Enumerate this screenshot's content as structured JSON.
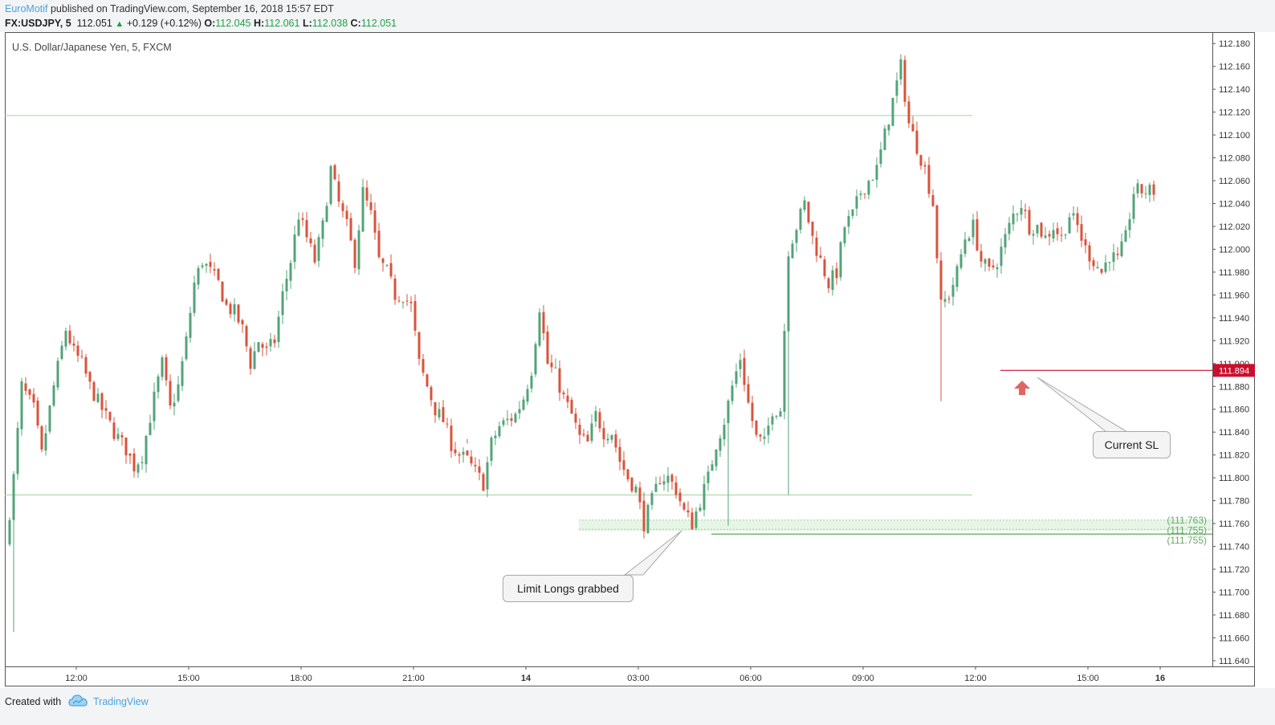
{
  "header": {
    "author": "EuroMotif",
    "published_text": " published on TradingView.com, September 16, 2018 15:57 EDT",
    "symbol": "FX:USDJPY, 5",
    "last": "112.051",
    "change": "+0.129 (+0.12%)",
    "o_label": "O:",
    "o": "112.045",
    "h_label": "H:",
    "h": "112.061",
    "l_label": "L:",
    "l": "112.038",
    "c_label": "C:",
    "c": "112.051"
  },
  "chart_title": "U.S. Dollar/Japanese Yen, 5, FXCM",
  "footer": {
    "created_with": "Created with",
    "brand": "TradingView"
  },
  "colors": {
    "up": "#53a378",
    "down": "#d9533b",
    "level_line": "#9fd49f",
    "sl_line": "#c8102e",
    "sl_badge": "#c8102e",
    "zone_fill": "#e6f5e6",
    "zone_text": "#6aa86a",
    "arrow": "#e06666",
    "accent": "#4ba3dd"
  },
  "chart_data": {
    "type": "candlestick",
    "title": "U.S. Dollar/Japanese Yen, 5, FXCM",
    "ylim": [
      111.635,
      112.19
    ],
    "y_ticks": [
      "112.180",
      "112.160",
      "112.140",
      "112.120",
      "112.100",
      "112.080",
      "112.060",
      "112.040",
      "112.020",
      "112.000",
      "111.980",
      "111.960",
      "111.940",
      "111.920",
      "111.900",
      "111.880",
      "111.860",
      "111.840",
      "111.820",
      "111.800",
      "111.780",
      "111.760",
      "111.740",
      "111.720",
      "111.700",
      "111.680",
      "111.660",
      "111.640"
    ],
    "x_ticks": [
      {
        "label": "12:00",
        "bold": false
      },
      {
        "label": "15:00",
        "bold": false
      },
      {
        "label": "18:00",
        "bold": false
      },
      {
        "label": "21:00",
        "bold": false
      },
      {
        "label": "14",
        "bold": true
      },
      {
        "label": "03:00",
        "bold": false
      },
      {
        "label": "06:00",
        "bold": false
      },
      {
        "label": "09:00",
        "bold": false
      },
      {
        "label": "12:00",
        "bold": false
      },
      {
        "label": "15:00",
        "bold": false
      },
      {
        "label": "16",
        "bold": true
      }
    ],
    "levels": [
      {
        "name": "upper-range-line",
        "value": 112.117
      },
      {
        "name": "lower-range-line",
        "value": 111.785
      }
    ],
    "zone": {
      "top": 111.763,
      "bottom": 111.755,
      "labels": [
        "(111.763)",
        "(111.755)",
        "(111.755)"
      ]
    },
    "stop_loss": {
      "value": 111.894,
      "label": "111.894"
    },
    "annotations": [
      {
        "name": "limit-longs-callout",
        "text": "Limit Longs grabbed"
      },
      {
        "name": "current-sl-callout",
        "text": "Current SL"
      }
    ],
    "path": [
      [
        0,
        111.74
      ],
      [
        2,
        111.8
      ],
      [
        4,
        111.88
      ],
      [
        7,
        111.86
      ],
      [
        9,
        111.82
      ],
      [
        12,
        111.88
      ],
      [
        15,
        111.93
      ],
      [
        17,
        111.91
      ],
      [
        19,
        111.9
      ],
      [
        21,
        111.88
      ],
      [
        24,
        111.86
      ],
      [
        27,
        111.84
      ],
      [
        30,
        111.825
      ],
      [
        32,
        111.81
      ],
      [
        34,
        111.82
      ],
      [
        37,
        111.87
      ],
      [
        39,
        111.9
      ],
      [
        41,
        111.86
      ],
      [
        43,
        111.88
      ],
      [
        45,
        111.92
      ],
      [
        47,
        111.97
      ],
      [
        49,
        111.99
      ],
      [
        51,
        111.98
      ],
      [
        53,
        111.97
      ],
      [
        55,
        111.95
      ],
      [
        57,
        111.945
      ],
      [
        59,
        111.93
      ],
      [
        61,
        111.9
      ],
      [
        63,
        111.92
      ],
      [
        65,
        111.91
      ],
      [
        67,
        111.92
      ],
      [
        69,
        111.96
      ],
      [
        71,
        111.99
      ],
      [
        73,
        112.03
      ],
      [
        75,
        112.01
      ],
      [
        77,
        111.99
      ],
      [
        79,
        112.02
      ],
      [
        81,
        112.07
      ],
      [
        83,
        112.04
      ],
      [
        85,
        112.02
      ],
      [
        87,
        111.99
      ],
      [
        89,
        112.05
      ],
      [
        91,
        112.03
      ],
      [
        93,
        111.99
      ],
      [
        95,
        111.98
      ],
      [
        97,
        111.96
      ],
      [
        99,
        111.96
      ],
      [
        101,
        111.95
      ],
      [
        103,
        111.9
      ],
      [
        105,
        111.88
      ],
      [
        107,
        111.86
      ],
      [
        109,
        111.85
      ],
      [
        111,
        111.83
      ],
      [
        113,
        111.82
      ],
      [
        115,
        111.815
      ],
      [
        117,
        111.805
      ],
      [
        119,
        111.795
      ],
      [
        121,
        111.83
      ],
      [
        123,
        111.845
      ],
      [
        125,
        111.85
      ],
      [
        127,
        111.855
      ],
      [
        129,
        111.87
      ],
      [
        131,
        111.895
      ],
      [
        133,
        111.95
      ],
      [
        135,
        111.9
      ],
      [
        137,
        111.89
      ],
      [
        139,
        111.87
      ],
      [
        141,
        111.855
      ],
      [
        143,
        111.835
      ],
      [
        145,
        111.83
      ],
      [
        147,
        111.855
      ],
      [
        149,
        111.84
      ],
      [
        151,
        111.84
      ],
      [
        153,
        111.815
      ],
      [
        155,
        111.8
      ],
      [
        157,
        111.79
      ],
      [
        159,
        111.76
      ],
      [
        161,
        111.78
      ],
      [
        163,
        111.8
      ],
      [
        165,
        111.8
      ],
      [
        167,
        111.79
      ],
      [
        169,
        111.77
      ],
      [
        171,
        111.76
      ],
      [
        173,
        111.78
      ],
      [
        175,
        111.8
      ],
      [
        177,
        111.83
      ],
      [
        179,
        111.85
      ],
      [
        181,
        111.88
      ],
      [
        183,
        111.905
      ],
      [
        185,
        111.865
      ],
      [
        187,
        111.835
      ],
      [
        189,
        111.83
      ],
      [
        191,
        111.86
      ],
      [
        193,
        111.86
      ],
      [
        195,
        112.0
      ],
      [
        197,
        112.02
      ],
      [
        199,
        112.04
      ],
      [
        201,
        112.01
      ],
      [
        203,
        111.99
      ],
      [
        205,
        111.97
      ],
      [
        207,
        111.98
      ],
      [
        209,
        112.02
      ],
      [
        211,
        112.03
      ],
      [
        213,
        112.05
      ],
      [
        215,
        112.06
      ],
      [
        217,
        112.07
      ],
      [
        219,
        112.1
      ],
      [
        221,
        112.13
      ],
      [
        223,
        112.16
      ],
      [
        225,
        112.11
      ],
      [
        227,
        112.09
      ],
      [
        229,
        112.07
      ],
      [
        231,
        112.04
      ],
      [
        233,
        111.95
      ],
      [
        235,
        111.96
      ],
      [
        237,
        111.98
      ],
      [
        239,
        112.01
      ],
      [
        241,
        112.02
      ],
      [
        243,
        111.99
      ],
      [
        245,
        111.98
      ],
      [
        247,
        111.99
      ],
      [
        249,
        112.01
      ],
      [
        251,
        112.03
      ],
      [
        253,
        112.04
      ],
      [
        255,
        112.02
      ],
      [
        257,
        112.02
      ],
      [
        259,
        112.01
      ],
      [
        261,
        112.02
      ],
      [
        263,
        112.01
      ],
      [
        265,
        112.03
      ],
      [
        267,
        112.02
      ],
      [
        269,
        112.0
      ],
      [
        271,
        111.99
      ],
      [
        273,
        111.98
      ],
      [
        275,
        111.995
      ],
      [
        277,
        111.99
      ],
      [
        279,
        112.01
      ],
      [
        281,
        112.05
      ],
      [
        282,
        112.051
      ]
    ],
    "spikes": [
      {
        "bar": 1,
        "low": 111.665
      },
      {
        "bar": 114,
        "low": 111.834
      },
      {
        "bar": 194,
        "low": 111.785
      },
      {
        "bar": 232,
        "low": 111.867
      },
      {
        "bar": 179,
        "low": 111.758
      }
    ]
  }
}
